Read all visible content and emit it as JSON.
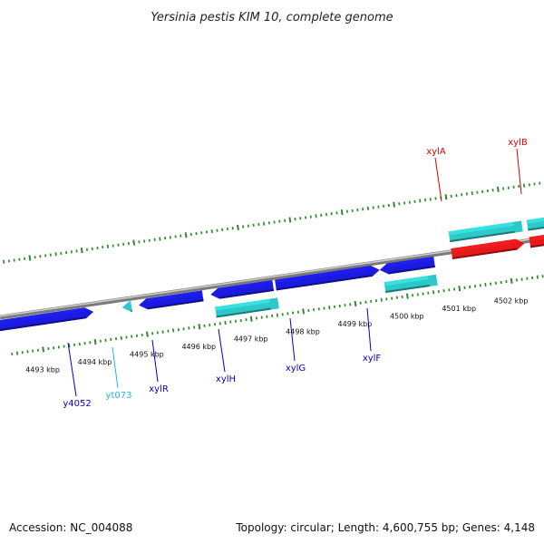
{
  "title": "Yersinia pestis KIM 10, complete genome",
  "footer": {
    "accession": "Accession: NC_004088",
    "summary": "Topology: circular; Length: 4,600,755 bp; Genes: 4,148"
  },
  "colors": {
    "backbone_dark": "#7a7a7a",
    "backbone_light": "#cfcfcf",
    "tick": "#2e8b2e",
    "gene_blue": "#1a1ae0",
    "gene_cyan": "#2ec8c8",
    "gene_red": "#e61a1a",
    "label_blue": "#0000c8",
    "label_cyan": "#28b4e6",
    "label_red": "#dc0000"
  },
  "scale": {
    "unit": "kbp",
    "major_ticks": [
      {
        "kbp": 4493,
        "label": "4493 kbp"
      },
      {
        "kbp": 4494,
        "label": "4494 kbp"
      },
      {
        "kbp": 4495,
        "label": "4495 kbp"
      },
      {
        "kbp": 4496,
        "label": "4496 kbp"
      },
      {
        "kbp": 4497,
        "label": "4497 kbp"
      },
      {
        "kbp": 4498,
        "label": "4498 kbp"
      },
      {
        "kbp": 4499,
        "label": "4499 kbp"
      },
      {
        "kbp": 4500,
        "label": "4500 kbp"
      },
      {
        "kbp": 4501,
        "label": "4501 kbp"
      },
      {
        "kbp": 4502,
        "label": "4502 kbp"
      }
    ]
  },
  "genes": [
    {
      "name": "y4052",
      "label_color": "label_blue",
      "label": "y4052"
    },
    {
      "name": "yt073",
      "label_color": "label_cyan",
      "label": "yt073"
    },
    {
      "name": "xylR",
      "label_color": "label_blue",
      "label": "xylR"
    },
    {
      "name": "xylH",
      "label_color": "label_blue",
      "label": "xylH"
    },
    {
      "name": "xylG",
      "label_color": "label_blue",
      "label": "xylG"
    },
    {
      "name": "xylF",
      "label_color": "label_blue",
      "label": "xylF"
    },
    {
      "name": "xylA",
      "label_color": "label_red",
      "label": "xylA"
    },
    {
      "name": "xylB",
      "label_color": "label_red",
      "label": "xylB"
    }
  ]
}
